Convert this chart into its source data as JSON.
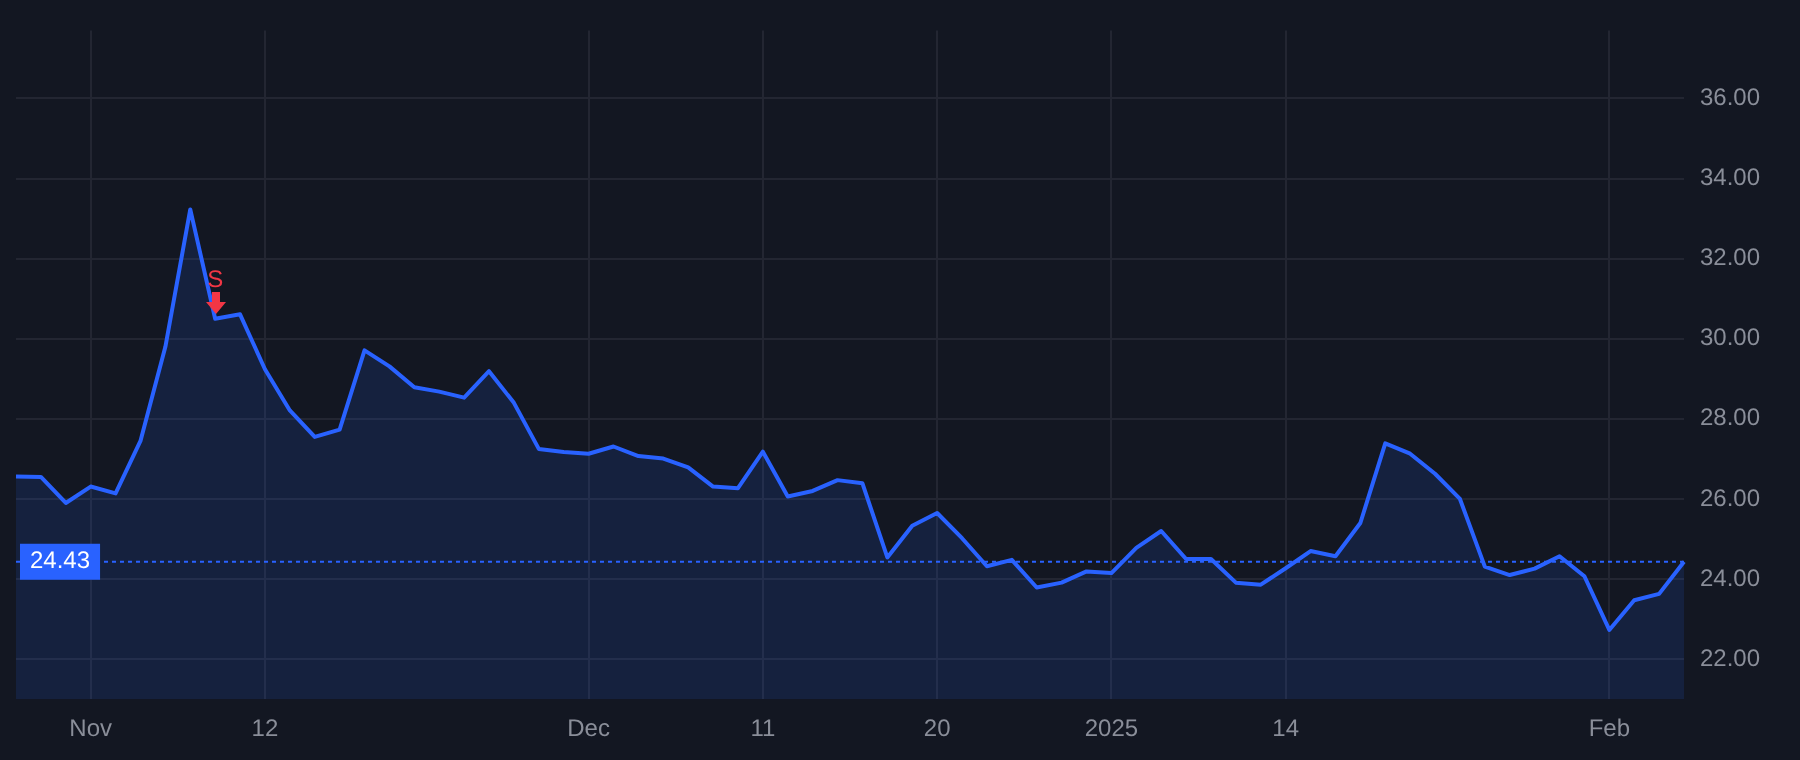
{
  "chart_data": {
    "type": "area",
    "categories": [
      null,
      null,
      null,
      "Nov",
      null,
      null,
      null,
      null,
      null,
      null,
      "12",
      null,
      null,
      null,
      null,
      null,
      null,
      null,
      null,
      null,
      null,
      null,
      null,
      "Dec",
      null,
      null,
      null,
      null,
      null,
      null,
      "11",
      null,
      null,
      null,
      null,
      null,
      null,
      "20",
      null,
      null,
      null,
      null,
      null,
      null,
      "2025",
      null,
      null,
      null,
      null,
      null,
      null,
      "14",
      null,
      null,
      null,
      null,
      null,
      null,
      null,
      null,
      null,
      null,
      null,
      null,
      "Feb",
      null,
      null,
      null
    ],
    "series": [
      {
        "color": "#2962ff",
        "values": [
          26.56,
          26.55,
          25.9,
          26.31,
          26.14,
          27.45,
          29.8,
          33.23,
          30.5,
          30.61,
          29.24,
          28.21,
          27.55,
          27.73,
          29.71,
          29.31,
          28.79,
          28.68,
          28.53,
          29.19,
          28.4,
          27.25,
          27.17,
          27.13,
          27.31,
          27.07,
          27.01,
          26.79,
          26.31,
          26.27,
          27.18,
          26.06,
          26.2,
          26.47,
          26.39,
          24.54,
          25.33,
          25.65,
          25.02,
          24.32,
          24.48,
          23.79,
          23.91,
          24.19,
          24.15,
          24.78,
          25.2,
          24.5,
          24.5,
          23.91,
          23.86,
          24.27,
          24.7,
          24.57,
          25.4,
          27.39,
          27.13,
          26.63,
          26.0,
          24.31,
          24.1,
          24.26,
          24.57,
          24.07,
          22.73,
          23.47,
          23.63,
          24.43
        ]
      }
    ],
    "ylim": [
      21,
      37.7
    ],
    "yticks": [
      {
        "value": 22,
        "label": "22.00"
      },
      {
        "value": 24,
        "label": "24.00"
      },
      {
        "value": 26,
        "label": "26.00"
      },
      {
        "value": 28,
        "label": "28.00"
      },
      {
        "value": 30,
        "label": "30.00"
      },
      {
        "value": 32,
        "label": "32.00"
      },
      {
        "value": 34,
        "label": "34.00"
      },
      {
        "value": 36,
        "label": "36.00"
      }
    ],
    "grid": true,
    "ref_lines": [
      {
        "axis": "y",
        "value": 24.43,
        "label": "24.43",
        "color": "#2962ff",
        "line_style": "dotted"
      }
    ],
    "annotations": [
      {
        "text": "S",
        "y": 30.5
      }
    ]
  }
}
